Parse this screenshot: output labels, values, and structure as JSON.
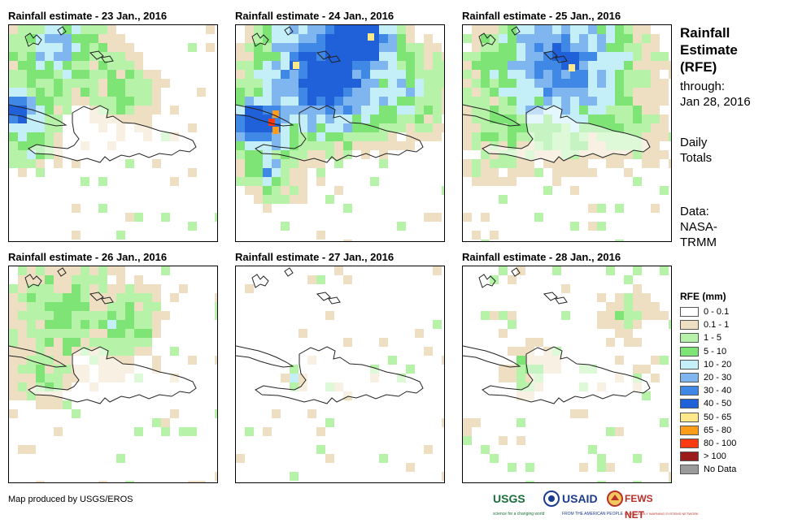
{
  "panels": [
    {
      "title": "Rainfall estimate - 23 Jan., 2016"
    },
    {
      "title": "Rainfall estimate - 24 Jan., 2016"
    },
    {
      "title": "Rainfall estimate - 25 Jan., 2016"
    },
    {
      "title": "Rainfall estimate - 26 Jan., 2016"
    },
    {
      "title": "Rainfall estimate - 27 Jan., 2016"
    },
    {
      "title": "Rainfall estimate - 28 Jan., 2016"
    }
  ],
  "sidebar": {
    "title_line1": "Rainfall",
    "title_line2": "Estimate",
    "title_line3": "(RFE)",
    "through_label": "through:",
    "through_date": "Jan 28, 2016",
    "totals_line1": "Daily",
    "totals_line2": "Totals",
    "source_line1": "Data:",
    "source_line2": "NASA-",
    "source_line3": "TRMM"
  },
  "legend": {
    "title": "RFE (mm)",
    "items": [
      {
        "label": "0 - 0.1",
        "color": "#ffffff"
      },
      {
        "label": "0.1 - 1",
        "color": "#efdfc2"
      },
      {
        "label": "1 - 5",
        "color": "#b6f2a8"
      },
      {
        "label": "5 - 10",
        "color": "#7ee476"
      },
      {
        "label": "10 - 20",
        "color": "#c4eef8"
      },
      {
        "label": "20 - 30",
        "color": "#7fb6f0"
      },
      {
        "label": "30 - 40",
        "color": "#3f88e6"
      },
      {
        "label": "40 - 50",
        "color": "#2060d8"
      },
      {
        "label": "50 - 65",
        "color": "#ffe88a"
      },
      {
        "label": "65 - 80",
        "color": "#ff9c18"
      },
      {
        "label": "80 - 100",
        "color": "#ff3a10"
      },
      {
        "label": "> 100",
        "color": "#9a1c1c"
      },
      {
        "label": "No Data",
        "color": "#9a9a9a"
      }
    ]
  },
  "footer": {
    "credit": "Map produced by USGS/EROS",
    "logos": [
      {
        "name": "USGS",
        "tagline": "science for a changing world",
        "color": "#1a6e3a"
      },
      {
        "name": "USAID",
        "tagline": "FROM THE AMERICAN PEOPLE",
        "color": "#1b3b8c"
      },
      {
        "name": "FEWS NET",
        "tagline": "FAMINE EARLY WARNING SYSTEMS NETWORK",
        "color": "#b8302a"
      }
    ]
  }
}
